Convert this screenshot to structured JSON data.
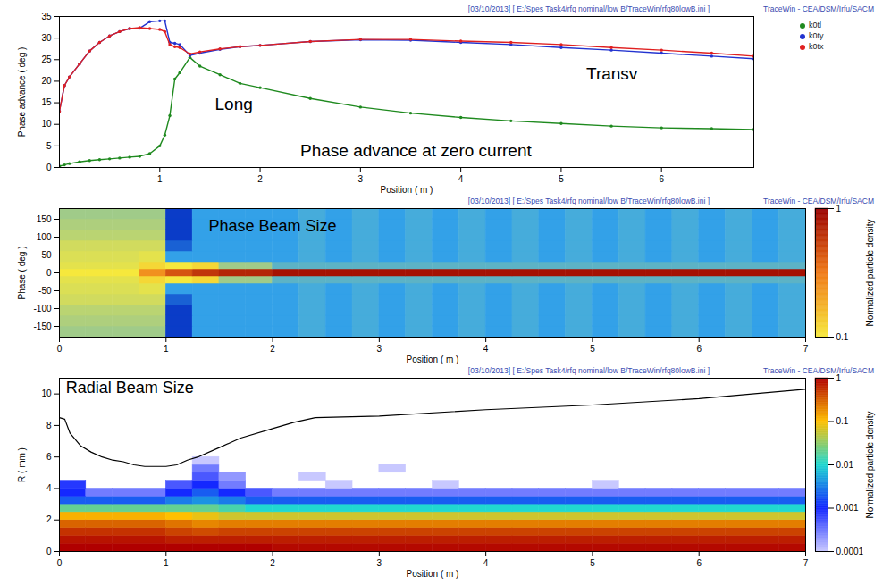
{
  "chart_data": [
    {
      "type": "line",
      "header": [
        "[03/10/2013] [ E:/Spes Task4/rfq nominal/low B/TraceWin/rfq80lowB.ini ]",
        "TraceWin - CEA/DSM/Irfu/SACM"
      ],
      "xlabel": "Position ( m )",
      "ylabel": "Phase advance ( deg )",
      "x": [
        0,
        0.05,
        0.1,
        0.2,
        0.3,
        0.4,
        0.5,
        0.6,
        0.7,
        0.8,
        0.9,
        1.0,
        1.05,
        1.1,
        1.15,
        1.2,
        1.3,
        1.4,
        1.6,
        1.8,
        2.0,
        2.5,
        3.0,
        3.5,
        4.0,
        4.5,
        5.0,
        5.5,
        6.0,
        6.5,
        6.92
      ],
      "series": [
        {
          "name": "k0tl",
          "color": "#1f8a1f",
          "marker": "circle",
          "values": [
            0.3,
            0.6,
            0.9,
            1.3,
            1.6,
            1.8,
            2.0,
            2.2,
            2.4,
            2.6,
            3.2,
            5,
            7.5,
            12,
            20.5,
            22,
            25.5,
            23.5,
            21.5,
            19.5,
            18.5,
            16,
            14,
            12.6,
            11.6,
            10.8,
            10.2,
            9.6,
            9.2,
            9.0,
            8.8
          ]
        },
        {
          "name": "k0ty",
          "color": "#2233d0",
          "marker": "circle",
          "values": [
            13,
            19,
            21,
            24,
            27,
            29,
            30.5,
            31.5,
            32.2,
            32.3,
            33.8,
            34,
            34,
            29,
            28.8,
            28.5,
            26,
            26.5,
            27.4,
            28,
            28.3,
            29.2,
            29.6,
            29.5,
            29,
            28.5,
            27.8,
            27.2,
            26.5,
            25.8,
            25.2
          ]
        },
        {
          "name": "k0tx",
          "color": "#e02020",
          "marker": "circle",
          "values": [
            13,
            19,
            21,
            24,
            27,
            29,
            30.5,
            31.5,
            32.2,
            32.4,
            32.2,
            32,
            31.5,
            28.5,
            28,
            27.8,
            26.3,
            26.8,
            27.5,
            28,
            28.3,
            29.2,
            29.7,
            29.7,
            29.3,
            29,
            28.5,
            27.8,
            27.2,
            26.5,
            25.8
          ]
        }
      ],
      "xlim": [
        0,
        6.92
      ],
      "xticks": [
        1,
        2,
        3,
        4,
        5,
        6
      ],
      "ylim": [
        0,
        35
      ],
      "yticks": [
        0,
        5,
        10,
        15,
        20,
        25,
        30,
        35
      ],
      "grid": false,
      "legend": "right",
      "annotations": [
        {
          "text": "Transv",
          "x": 5.25,
          "y": 21.7
        },
        {
          "text": "Long",
          "x": 1.55,
          "y": 14.6
        },
        {
          "text": "Phase advance at zero current",
          "x": 2.4,
          "y": 3.8
        }
      ]
    },
    {
      "type": "heatmap",
      "header": [
        "[03/10/2013] [ E:/Spes Task4/rfq nominal/low B/TraceWin/rfq80lowB.ini ]",
        "TraceWin - CEA/DSM/Irfu/SACM"
      ],
      "xlabel": "Position ( m )",
      "ylabel": "Phase ( deg )",
      "x_edges": [
        0,
        0.25,
        0.5,
        0.75,
        1,
        1.25,
        1.5,
        1.75,
        2,
        2.25,
        2.5,
        2.75,
        3,
        3.25,
        3.5,
        3.75,
        4,
        4.25,
        4.5,
        4.75,
        5,
        5.25,
        5.5,
        5.75,
        6,
        6.25,
        6.5,
        6.75,
        7
      ],
      "y_edges": [
        -180,
        -150,
        -120,
        -90,
        -60,
        -30,
        -10,
        10,
        30,
        60,
        90,
        120,
        150,
        180
      ],
      "values": [
        [
          0.06,
          0.06,
          0.06,
          0.06,
          0.01,
          0.03,
          0.03,
          0.03,
          0.03,
          0.035,
          0.03,
          0.035,
          0.03,
          0.035,
          0.03,
          0.035,
          0.03,
          0.035,
          0.03,
          0.035,
          0.03,
          0.035,
          0.03,
          0.035,
          0.03,
          0.035,
          0.03,
          0.035
        ],
        [
          0.065,
          0.065,
          0.065,
          0.065,
          0.01,
          0.03,
          0.03,
          0.03,
          0.03,
          0.035,
          0.03,
          0.035,
          0.03,
          0.035,
          0.03,
          0.035,
          0.03,
          0.035,
          0.03,
          0.035,
          0.03,
          0.035,
          0.03,
          0.035,
          0.03,
          0.035,
          0.03,
          0.035
        ],
        [
          0.07,
          0.07,
          0.07,
          0.07,
          0.01,
          0.03,
          0.03,
          0.03,
          0.03,
          0.035,
          0.03,
          0.035,
          0.03,
          0.035,
          0.03,
          0.035,
          0.03,
          0.035,
          0.03,
          0.035,
          0.03,
          0.035,
          0.03,
          0.035,
          0.03,
          0.035,
          0.03,
          0.035
        ],
        [
          0.08,
          0.08,
          0.08,
          0.08,
          0.015,
          0.03,
          0.03,
          0.03,
          0.03,
          0.035,
          0.03,
          0.035,
          0.03,
          0.035,
          0.03,
          0.035,
          0.03,
          0.035,
          0.03,
          0.035,
          0.03,
          0.035,
          0.03,
          0.035,
          0.03,
          0.035,
          0.03,
          0.035
        ],
        [
          0.085,
          0.085,
          0.085,
          0.09,
          0.03,
          0.03,
          0.03,
          0.03,
          0.03,
          0.035,
          0.03,
          0.035,
          0.03,
          0.035,
          0.03,
          0.035,
          0.03,
          0.035,
          0.03,
          0.035,
          0.03,
          0.035,
          0.03,
          0.035,
          0.03,
          0.035,
          0.03,
          0.035
        ],
        [
          0.09,
          0.09,
          0.09,
          0.12,
          0.1,
          0.12,
          0.06,
          0.06,
          0.04,
          0.04,
          0.04,
          0.04,
          0.04,
          0.04,
          0.04,
          0.04,
          0.04,
          0.04,
          0.04,
          0.04,
          0.04,
          0.04,
          0.04,
          0.04,
          0.04,
          0.04,
          0.04,
          0.04
        ],
        [
          0.1,
          0.1,
          0.1,
          0.25,
          0.45,
          0.6,
          0.7,
          0.7,
          0.85,
          0.85,
          0.85,
          0.85,
          0.85,
          0.85,
          0.85,
          0.85,
          0.85,
          0.85,
          0.85,
          0.85,
          0.85,
          0.85,
          0.85,
          0.85,
          0.85,
          0.85,
          0.85,
          0.85
        ],
        [
          0.09,
          0.09,
          0.09,
          0.12,
          0.1,
          0.12,
          0.06,
          0.06,
          0.04,
          0.04,
          0.04,
          0.04,
          0.04,
          0.04,
          0.04,
          0.04,
          0.04,
          0.04,
          0.04,
          0.04,
          0.04,
          0.04,
          0.04,
          0.04,
          0.04,
          0.04,
          0.04,
          0.04
        ],
        [
          0.085,
          0.085,
          0.085,
          0.09,
          0.03,
          0.03,
          0.03,
          0.03,
          0.03,
          0.035,
          0.03,
          0.035,
          0.03,
          0.035,
          0.03,
          0.035,
          0.03,
          0.035,
          0.03,
          0.035,
          0.03,
          0.035,
          0.03,
          0.035,
          0.03,
          0.035,
          0.03,
          0.035
        ],
        [
          0.08,
          0.08,
          0.08,
          0.08,
          0.015,
          0.03,
          0.03,
          0.03,
          0.03,
          0.035,
          0.03,
          0.035,
          0.03,
          0.035,
          0.03,
          0.035,
          0.03,
          0.035,
          0.03,
          0.035,
          0.03,
          0.035,
          0.03,
          0.035,
          0.03,
          0.035,
          0.03,
          0.035
        ],
        [
          0.07,
          0.07,
          0.07,
          0.07,
          0.01,
          0.03,
          0.03,
          0.03,
          0.03,
          0.035,
          0.03,
          0.035,
          0.03,
          0.035,
          0.03,
          0.035,
          0.03,
          0.035,
          0.03,
          0.035,
          0.03,
          0.035,
          0.03,
          0.035,
          0.03,
          0.035,
          0.03,
          0.035
        ],
        [
          0.065,
          0.065,
          0.065,
          0.065,
          0.01,
          0.03,
          0.03,
          0.03,
          0.03,
          0.035,
          0.03,
          0.035,
          0.03,
          0.035,
          0.03,
          0.035,
          0.03,
          0.035,
          0.03,
          0.035,
          0.03,
          0.035,
          0.03,
          0.035,
          0.03,
          0.035,
          0.03,
          0.035
        ],
        [
          0.06,
          0.06,
          0.06,
          0.06,
          0.01,
          0.03,
          0.03,
          0.03,
          0.03,
          0.035,
          0.03,
          0.035,
          0.03,
          0.035,
          0.03,
          0.035,
          0.03,
          0.035,
          0.03,
          0.035,
          0.03,
          0.035,
          0.03,
          0.035,
          0.03,
          0.035,
          0.03,
          0.035
        ]
      ],
      "xlim": [
        0,
        7
      ],
      "xticks": [
        0,
        1,
        2,
        3,
        4,
        5,
        6,
        7
      ],
      "ylim": [
        -180,
        180
      ],
      "yticks": [
        -150,
        -100,
        -50,
        0,
        50,
        100,
        150
      ],
      "grid": false,
      "colorbar": {
        "label": "Normalized particle density",
        "range": [
          0.1,
          1
        ],
        "ticks": [
          0.1,
          1
        ]
      },
      "annotations": [
        {
          "text": "Phase Beam Size",
          "x": 1.4,
          "y": 130
        }
      ]
    },
    {
      "type": "heatmap",
      "header": [
        "[03/10/2013] [ E:/Spes Task4/rfq nominal/low B/TraceWin/rfq80lowB.ini ]",
        "TraceWin - CEA/DSM/Irfu/SACM"
      ],
      "xlabel": "Position ( m )",
      "ylabel": "R ( mm )",
      "x_edges": [
        0,
        0.25,
        0.5,
        0.75,
        1,
        1.25,
        1.5,
        1.75,
        2,
        2.25,
        2.5,
        2.75,
        3,
        3.25,
        3.5,
        3.75,
        4,
        4.25,
        4.5,
        4.75,
        5,
        5.25,
        5.5,
        5.75,
        6,
        6.25,
        6.5,
        6.75,
        7
      ],
      "y_edges": [
        0,
        0.5,
        1,
        1.5,
        2,
        2.5,
        3,
        3.5,
        4,
        4.5,
        5,
        5.5,
        6
      ],
      "values": [
        [
          1,
          1,
          1,
          1,
          1,
          1,
          1,
          1,
          0.9,
          0.9,
          0.9,
          0.9,
          0.9,
          0.9,
          0.9,
          0.9,
          0.9,
          0.9,
          0.9,
          0.9,
          0.9,
          0.9,
          0.9,
          0.9,
          0.9,
          0.9,
          0.9,
          0.9
        ],
        [
          0.8,
          0.8,
          0.8,
          0.8,
          0.7,
          0.7,
          0.7,
          0.7,
          0.7,
          0.7,
          0.7,
          0.7,
          0.7,
          0.7,
          0.7,
          0.7,
          0.7,
          0.7,
          0.7,
          0.7,
          0.7,
          0.7,
          0.7,
          0.7,
          0.7,
          0.7,
          0.7,
          0.7
        ],
        [
          0.55,
          0.55,
          0.55,
          0.55,
          0.45,
          0.4,
          0.45,
          0.45,
          0.45,
          0.45,
          0.45,
          0.45,
          0.45,
          0.45,
          0.45,
          0.45,
          0.45,
          0.45,
          0.45,
          0.45,
          0.45,
          0.45,
          0.45,
          0.45,
          0.45,
          0.45,
          0.45,
          0.45
        ],
        [
          0.3,
          0.3,
          0.3,
          0.3,
          0.25,
          0.2,
          0.22,
          0.22,
          0.22,
          0.22,
          0.22,
          0.22,
          0.22,
          0.22,
          0.22,
          0.22,
          0.22,
          0.22,
          0.22,
          0.22,
          0.22,
          0.22,
          0.22,
          0.22,
          0.22,
          0.22,
          0.22,
          0.22
        ],
        [
          0.12,
          0.12,
          0.12,
          0.12,
          0.1,
          0.08,
          0.06,
          0.06,
          0.06,
          0.06,
          0.06,
          0.06,
          0.06,
          0.06,
          0.06,
          0.06,
          0.06,
          0.06,
          0.06,
          0.06,
          0.06,
          0.06,
          0.06,
          0.06,
          0.06,
          0.06,
          0.06,
          0.06
        ],
        [
          0.02,
          0.02,
          0.02,
          0.02,
          0.02,
          0.02,
          0.015,
          0.01,
          0.01,
          0.01,
          0.01,
          0.01,
          0.01,
          0.01,
          0.01,
          0.01,
          0.01,
          0.01,
          0.01,
          0.01,
          0.01,
          0.01,
          0.01,
          0.01,
          0.01,
          0.01,
          0.01,
          0.01
        ],
        [
          0.002,
          0.002,
          0.002,
          0.002,
          0.003,
          0.004,
          0.003,
          0.002,
          0.002,
          0.002,
          0.002,
          0.002,
          0.002,
          0.002,
          0.002,
          0.002,
          0.002,
          0.002,
          0.002,
          0.002,
          0.002,
          0.002,
          0.002,
          0.002,
          0.002,
          0.002,
          0.002,
          0.002
        ],
        [
          0.001,
          0.0003,
          0.0003,
          0.0003,
          0.001,
          0.002,
          0.001,
          0.0005,
          0.0003,
          0.0003,
          0.0003,
          0.0003,
          0.0003,
          0.0003,
          0.0003,
          0.0003,
          0.0003,
          0.0003,
          0.0003,
          0.0003,
          0.0003,
          0.0003,
          0.0003,
          0.0003,
          0.0003,
          0.0003,
          0.0003,
          0.0003
        ],
        [
          0.0008,
          null,
          null,
          null,
          0.0005,
          0.001,
          0.0003,
          null,
          null,
          null,
          0.0001,
          null,
          null,
          null,
          0.0001,
          null,
          null,
          null,
          null,
          null,
          0.0001,
          null,
          null,
          null,
          null,
          null,
          null,
          null
        ],
        [
          null,
          null,
          null,
          null,
          null,
          0.0005,
          0.0002,
          null,
          null,
          0.0001,
          null,
          null,
          null,
          null,
          null,
          null,
          null,
          null,
          null,
          null,
          null,
          null,
          null,
          null,
          null,
          null,
          null,
          null
        ],
        [
          null,
          null,
          null,
          null,
          null,
          0.0003,
          null,
          null,
          null,
          null,
          null,
          null,
          0.0001,
          null,
          null,
          null,
          null,
          null,
          null,
          null,
          null,
          null,
          null,
          null,
          null,
          null,
          null,
          null
        ],
        [
          null,
          null,
          null,
          null,
          null,
          0.0001,
          null,
          null,
          null,
          null,
          null,
          null,
          null,
          null,
          null,
          null,
          null,
          null,
          null,
          null,
          null,
          null,
          null,
          null,
          null,
          null,
          null,
          null
        ]
      ],
      "line": {
        "x": [
          0,
          0.05,
          0.1,
          0.2,
          0.3,
          0.4,
          0.5,
          0.6,
          0.7,
          0.8,
          1.0,
          1.1,
          1.2,
          1.3,
          1.5,
          1.7,
          2.0,
          2.2,
          2.4,
          3.0,
          4.0,
          5.0,
          6.0,
          7.0
        ],
        "values": [
          8.5,
          8.4,
          7.5,
          6.7,
          6.3,
          6.0,
          5.8,
          5.7,
          5.5,
          5.4,
          5.4,
          5.5,
          5.8,
          6.0,
          6.6,
          7.2,
          7.8,
          8.2,
          8.5,
          8.6,
          9.0,
          9.3,
          9.7,
          10.3
        ],
        "color": "#000000"
      },
      "xlim": [
        0,
        7
      ],
      "xticks": [
        0,
        1,
        2,
        3,
        4,
        5,
        6,
        7
      ],
      "ylim": [
        0,
        11
      ],
      "yticks": [
        0,
        2,
        4,
        6,
        8,
        10
      ],
      "grid": false,
      "colorbar": {
        "label": "Normalized particle density",
        "range": [
          0.0001,
          1
        ],
        "ticks": [
          1,
          0.1,
          0.01,
          0.001,
          0.0001
        ]
      },
      "annotations": [
        {
          "text": "Radial Beam Size",
          "x": 0.06,
          "y": 10.4
        }
      ]
    }
  ]
}
